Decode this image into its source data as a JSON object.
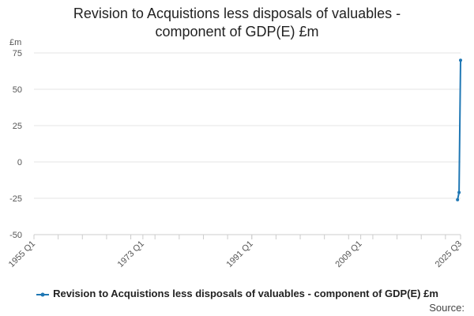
{
  "chart_data": {
    "type": "line",
    "title_line1": "Revision to Acquistions less disposals of valuables -",
    "title_line2": "component of GDP(E) £m",
    "ylabel": "£m",
    "ylim": [
      -50,
      75
    ],
    "yticks": [
      "75",
      "50",
      "25",
      "0",
      "-25",
      "-50"
    ],
    "xlim": [
      1955,
      2025.5
    ],
    "xticks": [
      {
        "label": "1955 Q1",
        "value": 1955
      },
      {
        "label": "1973 Q1",
        "value": 1973
      },
      {
        "label": "1991 Q1",
        "value": 1991
      },
      {
        "label": "2009 Q1",
        "value": 2009
      },
      {
        "label": "2025 Q3",
        "value": 2025.5
      }
    ],
    "grid": true,
    "legend_placement": "bottom",
    "series": [
      {
        "name": "Revision to Acquistions less disposals of valuables - component of GDP(E) £m",
        "color": "#1f77b4",
        "points": [
          {
            "x": 2025.0,
            "y": -26
          },
          {
            "x": 2025.25,
            "y": -21
          },
          {
            "x": 2025.5,
            "y": 70
          }
        ]
      }
    ]
  },
  "source_label": "Source:"
}
